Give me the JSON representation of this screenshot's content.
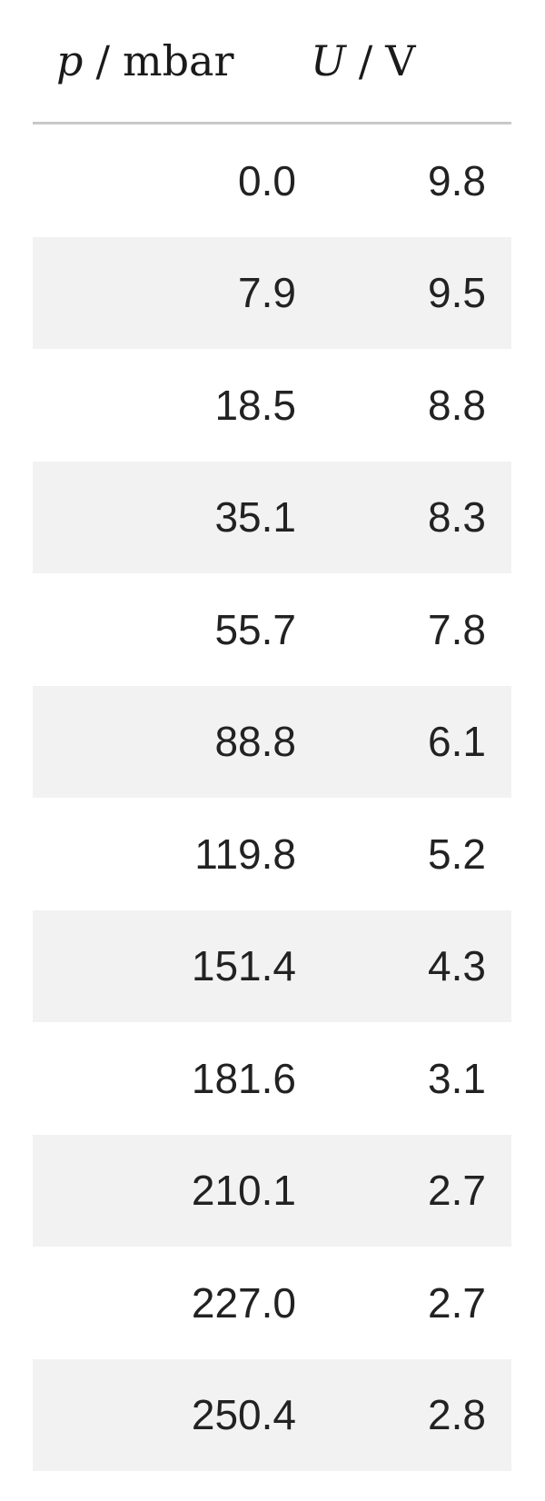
{
  "table": {
    "headers": {
      "p": {
        "var": "p",
        "sep": "/",
        "unit": "mbar"
      },
      "u": {
        "var": "U",
        "sep": "/",
        "unit": "V"
      }
    },
    "rows": [
      {
        "p": "0.0",
        "u": "9.8"
      },
      {
        "p": "7.9",
        "u": "9.5"
      },
      {
        "p": "18.5",
        "u": "8.8"
      },
      {
        "p": "35.1",
        "u": "8.3"
      },
      {
        "p": "55.7",
        "u": "7.8"
      },
      {
        "p": "88.8",
        "u": "6.1"
      },
      {
        "p": "119.8",
        "u": "5.2"
      },
      {
        "p": "151.4",
        "u": "4.3"
      },
      {
        "p": "181.6",
        "u": "3.1"
      },
      {
        "p": "210.1",
        "u": "2.7"
      },
      {
        "p": "227.0",
        "u": "2.7"
      },
      {
        "p": "250.4",
        "u": "2.8"
      }
    ]
  }
}
